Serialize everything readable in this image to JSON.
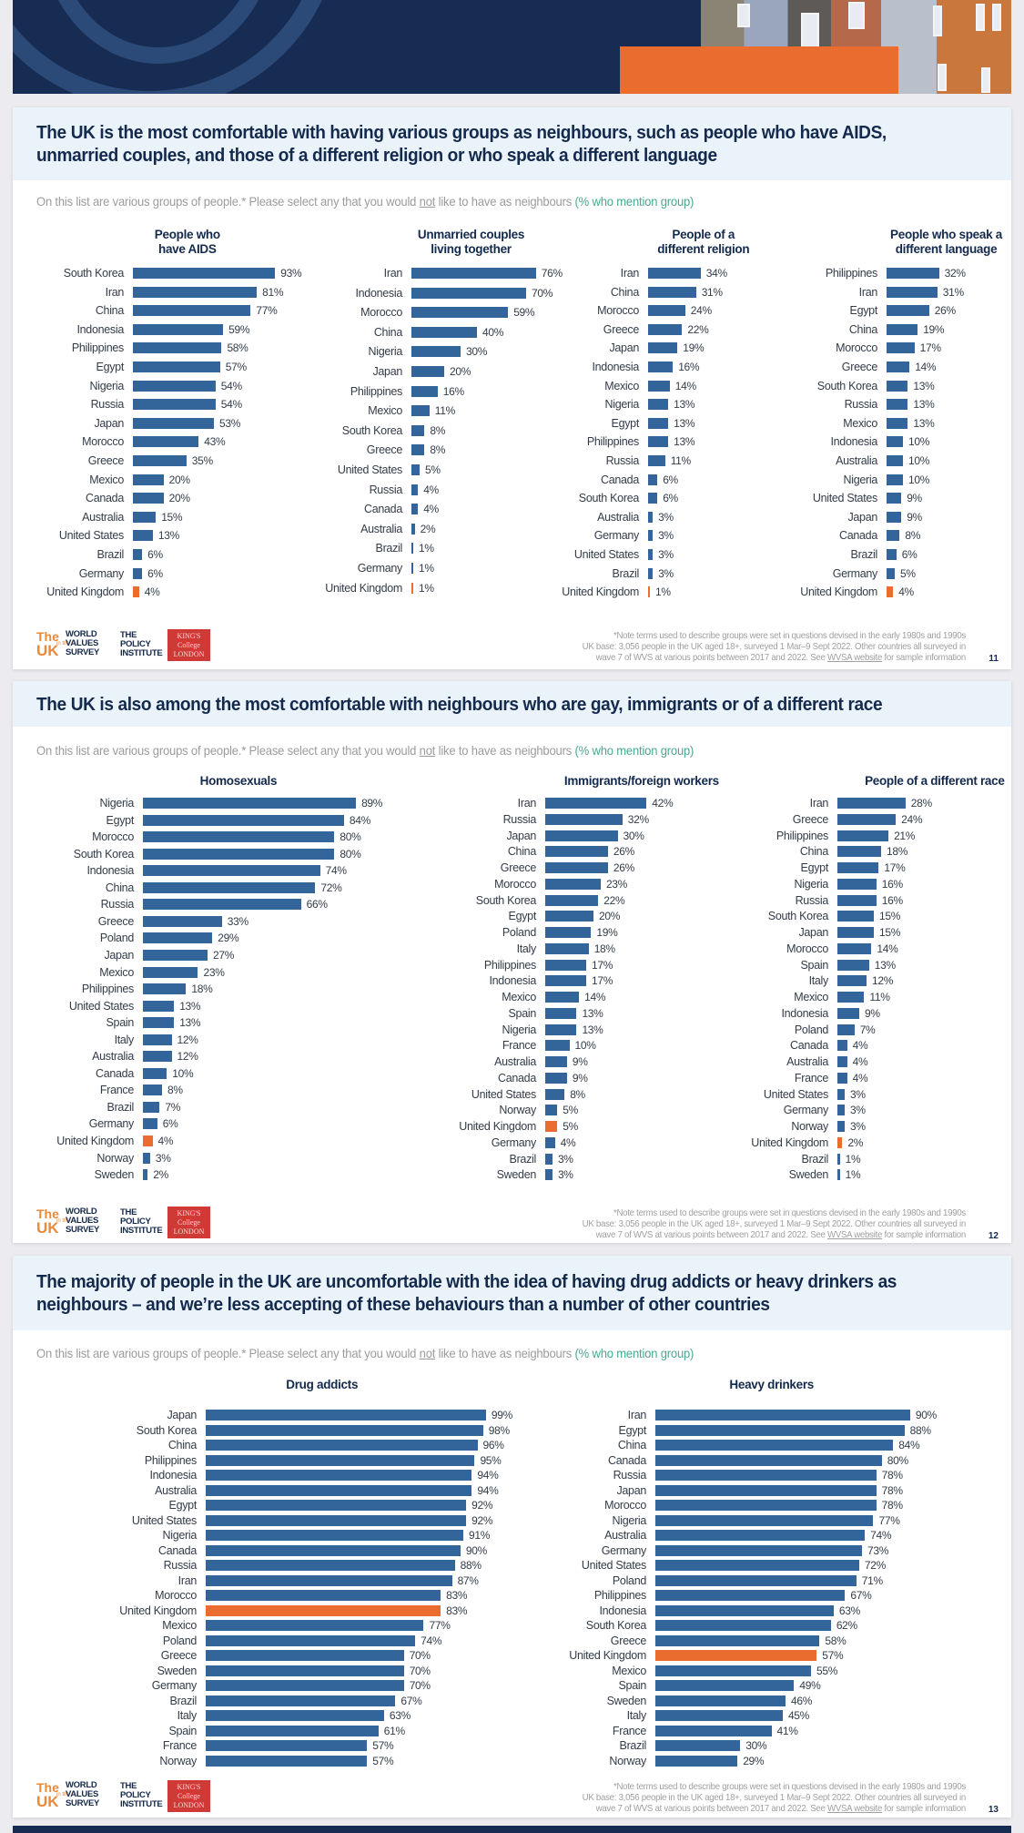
{
  "colors": {
    "bar": "#34659a",
    "uk_highlight": "#ea6c2e",
    "title": "#142a4d",
    "accent_green": "#4aa890"
  },
  "question": {
    "prefix": "On this list are various groups of people.* Please select any that you would ",
    "not": "not",
    "suffix": " like to have as neighbours ",
    "green": "(% who mention group)"
  },
  "footer": {
    "logo_uk_the": "The",
    "logo_uk_uk": "UK",
    "logo_uk_inthe": "in the",
    "logo_wvs": [
      "WORLD",
      "VALUES",
      "SURVEY"
    ],
    "logo_policy": [
      "THE",
      "POLICY",
      "INSTITUTE"
    ],
    "logo_kcl": [
      "KING'S",
      "College",
      "LONDON"
    ],
    "note_line1": "*Note terms used to describe groups were set in questions devised in the early 1980s and 1990s",
    "note_line2": "UK base: 3,056 people in the UK aged 18+, surveyed 1 Mar–9 Sept 2022. Other countries all surveyed in",
    "note_line3_prefix": "wave 7 of WVS at various points between 2017 and 2022. See ",
    "note_link": "WVSA website",
    "note_line3_suffix": " for sample information"
  },
  "slides": [
    {
      "title_lines": [
        "The UK is the most comfortable with having various groups as neighbours, such as people who have AIDS,",
        "unmarried couples, and those of a different religion or who speak a different language"
      ],
      "page_number": "11"
    },
    {
      "title_lines": [
        "The UK is also among the most comfortable with neighbours who are gay, immigrants or of a different race"
      ],
      "page_number": "12"
    },
    {
      "title_lines": [
        "The majority of people in the UK are uncomfortable with the idea of having drug addicts or heavy drinkers as",
        "neighbours – and we’re less accepting of these behaviours than a number of other countries"
      ],
      "page_number": "13"
    }
  ],
  "chart_data": [
    {
      "type": "bar",
      "slide": 11,
      "title": "People who have AIDS",
      "title_lines": [
        "People who",
        "have AIDS"
      ],
      "unit": "%",
      "highlight": "United Kingdom",
      "categories": [
        "South Korea",
        "Iran",
        "China",
        "Indonesia",
        "Philippines",
        "Egypt",
        "Nigeria",
        "Russia",
        "Japan",
        "Morocco",
        "Greece",
        "Mexico",
        "Canada",
        "Australia",
        "United States",
        "Brazil",
        "Germany",
        "United Kingdom"
      ],
      "values": [
        93,
        81,
        77,
        59,
        58,
        57,
        54,
        54,
        53,
        43,
        35,
        20,
        20,
        15,
        13,
        6,
        6,
        4
      ]
    },
    {
      "type": "bar",
      "slide": 11,
      "title": "Unmarried couples living together",
      "title_lines": [
        "Unmarried couples",
        "living together"
      ],
      "unit": "%",
      "highlight": "United Kingdom",
      "categories": [
        "Iran",
        "Indonesia",
        "Morocco",
        "China",
        "Nigeria",
        "Japan",
        "Philippines",
        "Mexico",
        "South Korea",
        "Greece",
        "United States",
        "Russia",
        "Canada",
        "Australia",
        "Brazil",
        "Germany",
        "United Kingdom"
      ],
      "values": [
        76,
        70,
        59,
        40,
        30,
        20,
        16,
        11,
        8,
        8,
        5,
        4,
        4,
        2,
        1,
        1,
        1
      ]
    },
    {
      "type": "bar",
      "slide": 11,
      "title": "People of a different religion",
      "title_lines": [
        "People of a",
        "different religion"
      ],
      "unit": "%",
      "highlight": "United Kingdom",
      "categories": [
        "Iran",
        "China",
        "Morocco",
        "Greece",
        "Japan",
        "Indonesia",
        "Mexico",
        "Nigeria",
        "Egypt",
        "Philippines",
        "Russia",
        "Canada",
        "South Korea",
        "Australia",
        "Germany",
        "United States",
        "Brazil",
        "United Kingdom"
      ],
      "values": [
        34,
        31,
        24,
        22,
        19,
        16,
        14,
        13,
        13,
        13,
        11,
        6,
        6,
        3,
        3,
        3,
        3,
        1
      ]
    },
    {
      "type": "bar",
      "slide": 11,
      "title": "People who speak a different language",
      "title_lines": [
        "People who speak a",
        "different language"
      ],
      "unit": "%",
      "highlight": "United Kingdom",
      "categories": [
        "Philippines",
        "Iran",
        "Egypt",
        "China",
        "Morocco",
        "Greece",
        "South Korea",
        "Russia",
        "Mexico",
        "Indonesia",
        "Australia",
        "Nigeria",
        "United States",
        "Japan",
        "Canada",
        "Brazil",
        "Germany",
        "United Kingdom"
      ],
      "values": [
        32,
        31,
        26,
        19,
        17,
        14,
        13,
        13,
        13,
        10,
        10,
        10,
        9,
        9,
        8,
        6,
        5,
        4
      ]
    },
    {
      "type": "bar",
      "slide": 12,
      "title": "Homosexuals",
      "title_lines": [
        "Homosexuals"
      ],
      "unit": "%",
      "highlight": "United Kingdom",
      "categories": [
        "Nigeria",
        "Egypt",
        "Morocco",
        "South Korea",
        "Indonesia",
        "China",
        "Russia",
        "Greece",
        "Poland",
        "Japan",
        "Mexico",
        "Philippines",
        "United States",
        "Spain",
        "Italy",
        "Australia",
        "Canada",
        "France",
        "Brazil",
        "Germany",
        "United Kingdom",
        "Norway",
        "Sweden"
      ],
      "values": [
        89,
        84,
        80,
        80,
        74,
        72,
        66,
        33,
        29,
        27,
        23,
        18,
        13,
        13,
        12,
        12,
        10,
        8,
        7,
        6,
        4,
        3,
        2
      ]
    },
    {
      "type": "bar",
      "slide": 12,
      "title": "Immigrants/foreign workers",
      "title_lines": [
        "Immigrants/foreign workers"
      ],
      "unit": "%",
      "highlight": "United Kingdom",
      "categories": [
        "Iran",
        "Russia",
        "Japan",
        "China",
        "Greece",
        "Morocco",
        "South Korea",
        "Egypt",
        "Poland",
        "Italy",
        "Philippines",
        "Indonesia",
        "Mexico",
        "Spain",
        "Nigeria",
        "France",
        "Australia",
        "Canada",
        "United States",
        "Norway",
        "United Kingdom",
        "Germany",
        "Brazil",
        "Sweden"
      ],
      "values": [
        42,
        32,
        30,
        26,
        26,
        23,
        22,
        20,
        19,
        18,
        17,
        17,
        14,
        13,
        13,
        10,
        9,
        9,
        8,
        5,
        5,
        4,
        3,
        3
      ]
    },
    {
      "type": "bar",
      "slide": 12,
      "title": "People of a different race",
      "title_lines": [
        "People of a different race"
      ],
      "unit": "%",
      "highlight": "United Kingdom",
      "categories": [
        "Iran",
        "Greece",
        "Philippines",
        "China",
        "Egypt",
        "Nigeria",
        "Russia",
        "South Korea",
        "Japan",
        "Morocco",
        "Spain",
        "Italy",
        "Mexico",
        "Indonesia",
        "Poland",
        "Canada",
        "Australia",
        "France",
        "United States",
        "Germany",
        "Norway",
        "United Kingdom",
        "Brazil",
        "Sweden"
      ],
      "values": [
        28,
        24,
        21,
        18,
        17,
        16,
        16,
        15,
        15,
        14,
        13,
        12,
        11,
        9,
        7,
        4,
        4,
        4,
        3,
        3,
        3,
        2,
        1,
        1
      ]
    },
    {
      "type": "bar",
      "slide": 13,
      "title": "Drug addicts",
      "title_lines": [
        "Drug addicts"
      ],
      "unit": "%",
      "highlight": "United Kingdom",
      "categories": [
        "Japan",
        "South Korea",
        "China",
        "Philippines",
        "Indonesia",
        "Australia",
        "Egypt",
        "United States",
        "Nigeria",
        "Canada",
        "Russia",
        "Iran",
        "Morocco",
        "United Kingdom",
        "Mexico",
        "Poland",
        "Greece",
        "Sweden",
        "Germany",
        "Brazil",
        "Italy",
        "Spain",
        "France",
        "Norway"
      ],
      "values": [
        99,
        98,
        96,
        95,
        94,
        94,
        92,
        92,
        91,
        90,
        88,
        87,
        83,
        83,
        77,
        74,
        70,
        70,
        70,
        67,
        63,
        61,
        57,
        57
      ]
    },
    {
      "type": "bar",
      "slide": 13,
      "title": "Heavy drinkers",
      "title_lines": [
        "Heavy drinkers"
      ],
      "unit": "%",
      "highlight": "United Kingdom",
      "categories": [
        "Iran",
        "Egypt",
        "China",
        "Canada",
        "Russia",
        "Japan",
        "Morocco",
        "Nigeria",
        "Australia",
        "Germany",
        "United States",
        "Poland",
        "Philippines",
        "Indonesia",
        "South Korea",
        "Greece",
        "United Kingdom",
        "Mexico",
        "Spain",
        "Sweden",
        "Italy",
        "France",
        "Brazil",
        "Norway"
      ],
      "values": [
        90,
        88,
        84,
        80,
        78,
        78,
        78,
        77,
        74,
        73,
        72,
        71,
        67,
        63,
        62,
        58,
        57,
        55,
        49,
        46,
        45,
        41,
        30,
        29
      ]
    }
  ]
}
